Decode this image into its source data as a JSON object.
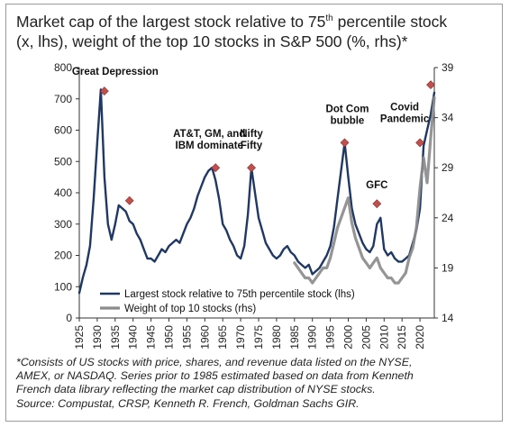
{
  "title": {
    "part1": "Market cap of the largest stock relative to 75",
    "sup": "th",
    "part2": " percentile stock",
    "line2": "(x, lhs), weight of the top 10 stocks in S&P 500 (%, rhs)*"
  },
  "footnote": {
    "line1": "*Consists of US stocks with price, shares, and revenue data listed on the NYSE,",
    "line2": "AMEX, or NASDAQ. Series prior to 1985 estimated based on data from Kenneth",
    "line3": "French data library reflecting the market cap distribution of NYSE stocks.",
    "line4": "Source: Compustat, CRSP, Kenneth R. French, Goldman Sachs GIR."
  },
  "chart_data": {
    "type": "line",
    "xlim": [
      1925,
      2024
    ],
    "ylim_left": [
      0,
      800
    ],
    "ylim_right": [
      14,
      39
    ],
    "x_ticks": [
      1925,
      1930,
      1935,
      1940,
      1945,
      1950,
      1955,
      1960,
      1965,
      1970,
      1975,
      1980,
      1985,
      1990,
      1995,
      2000,
      2005,
      2010,
      2015,
      2020
    ],
    "y_ticks_left": [
      0,
      100,
      200,
      300,
      400,
      500,
      600,
      700,
      800
    ],
    "y_ticks_right": [
      14,
      19,
      24,
      29,
      34,
      39
    ],
    "grid": false,
    "legend_position": "bottom-left",
    "colors": {
      "lhs": "#1f3864",
      "rhs": "#8c8c8c",
      "marker": "#c0504d"
    },
    "series": [
      {
        "name": "Largest stock relative to 75th percentile stock (lhs)",
        "axis": "left",
        "x": [
          1925,
          1926,
          1927,
          1928,
          1929,
          1930,
          1931,
          1932,
          1933,
          1934,
          1935,
          1936,
          1937,
          1938,
          1939,
          1940,
          1941,
          1942,
          1943,
          1944,
          1945,
          1946,
          1947,
          1948,
          1949,
          1950,
          1951,
          1952,
          1953,
          1954,
          1955,
          1956,
          1957,
          1958,
          1959,
          1960,
          1961,
          1962,
          1963,
          1964,
          1965,
          1966,
          1967,
          1968,
          1969,
          1970,
          1971,
          1972,
          1973,
          1974,
          1975,
          1976,
          1977,
          1978,
          1979,
          1980,
          1981,
          1982,
          1983,
          1984,
          1985,
          1986,
          1987,
          1988,
          1989,
          1990,
          1991,
          1992,
          1993,
          1994,
          1995,
          1996,
          1997,
          1998,
          1999,
          2000,
          2001,
          2002,
          2003,
          2004,
          2005,
          2006,
          2007,
          2008,
          2009,
          2010,
          2011,
          2012,
          2013,
          2014,
          2015,
          2016,
          2017,
          2018,
          2019,
          2020,
          2021,
          2022,
          2023,
          2024
        ],
        "values": [
          80,
          130,
          170,
          230,
          380,
          560,
          730,
          450,
          300,
          250,
          300,
          360,
          350,
          340,
          310,
          300,
          270,
          250,
          220,
          190,
          190,
          180,
          200,
          220,
          210,
          230,
          240,
          250,
          240,
          270,
          300,
          320,
          350,
          390,
          420,
          450,
          470,
          480,
          440,
          380,
          300,
          280,
          250,
          230,
          200,
          190,
          230,
          330,
          480,
          400,
          320,
          280,
          240,
          220,
          200,
          190,
          200,
          220,
          230,
          210,
          200,
          180,
          170,
          160,
          170,
          140,
          150,
          160,
          180,
          200,
          230,
          290,
          380,
          470,
          560,
          450,
          350,
          300,
          270,
          240,
          220,
          210,
          230,
          300,
          320,
          220,
          200,
          210,
          190,
          180,
          180,
          190,
          200,
          240,
          280,
          350,
          550,
          600,
          650,
          720
        ]
      },
      {
        "name": "Weight of top 10 stocks (rhs)",
        "axis": "right",
        "x": [
          1985,
          1986,
          1987,
          1988,
          1989,
          1990,
          1991,
          1992,
          1993,
          1994,
          1995,
          1996,
          1997,
          1998,
          1999,
          2000,
          2001,
          2002,
          2003,
          2004,
          2005,
          2006,
          2007,
          2008,
          2009,
          2010,
          2011,
          2012,
          2013,
          2014,
          2015,
          2016,
          2017,
          2018,
          2019,
          2020,
          2021,
          2022,
          2023,
          2024
        ],
        "values": [
          19.5,
          19.0,
          18.5,
          18.0,
          18.0,
          17.5,
          18.0,
          18.5,
          19.0,
          19.0,
          20.0,
          21.5,
          23.0,
          24.0,
          25.0,
          26.0,
          23.5,
          22.0,
          21.0,
          20.0,
          19.5,
          19.0,
          19.5,
          20.0,
          19.0,
          18.5,
          18.0,
          18.0,
          17.5,
          17.5,
          18.0,
          18.5,
          20.0,
          21.0,
          23.0,
          27.0,
          30.0,
          27.5,
          32.0,
          36.0
        ]
      }
    ],
    "annotations": [
      {
        "label": [
          "Great Depression"
        ],
        "x": 1932,
        "y": 725
      },
      {
        "label": [
          "AT&T, GM, and",
          "IBM dominate"
        ],
        "x": 1963,
        "y": 480
      },
      {
        "label": [
          "Nifty",
          "Fifty"
        ],
        "x": 1973,
        "y": 480
      },
      {
        "label": [
          "Dot Com",
          "bubble"
        ],
        "x": 1999,
        "y": 560
      },
      {
        "label": [
          "GFC"
        ],
        "x": 2008,
        "y": 365
      },
      {
        "label": [
          "Covid",
          "Pandemic"
        ],
        "x": 2020,
        "y": 560
      }
    ],
    "extra_markers": [
      {
        "x": 1939,
        "y": 375
      },
      {
        "x": 2023,
        "y": 745
      }
    ]
  }
}
